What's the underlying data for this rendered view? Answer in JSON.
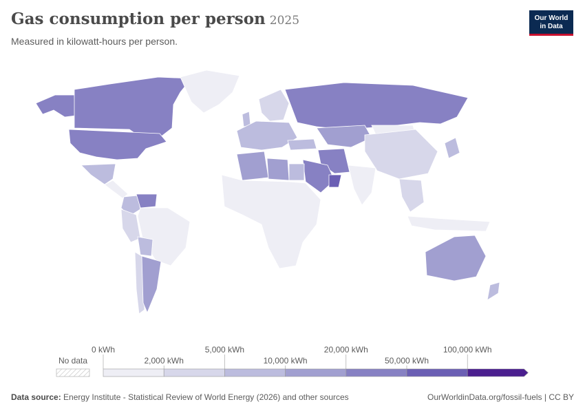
{
  "header": {
    "title": "Gas consumption per person",
    "year": "2025",
    "subtitle": "Measured in kilowatt-hours per person."
  },
  "logo": {
    "line1": "Our World",
    "line2": "in Data"
  },
  "legend": {
    "no_data_label": "No data",
    "top_labels": [
      "0 kWh",
      "5,000 kWh",
      "20,000 kWh",
      "100,000 kWh"
    ],
    "bottom_labels": [
      "2,000 kWh",
      "10,000 kWh",
      "50,000 kWh"
    ],
    "colors": [
      "#eeeef5",
      "#d7d7ea",
      "#bcbcde",
      "#a19fd0",
      "#8781c3",
      "#6b5fb4",
      "#4b1f8f"
    ]
  },
  "footer": {
    "source_label": "Data source:",
    "source_text": "Energy Institute - Statistical Review of World Energy (2026) and other sources",
    "url": "OurWorldinData.org/fossil-fuels | CC BY"
  },
  "map_regions": [
    {
      "name": "canada",
      "color": "#8781c3"
    },
    {
      "name": "usa",
      "color": "#8781c3"
    },
    {
      "name": "alaska",
      "color": "#8781c3"
    },
    {
      "name": "greenland",
      "color": "#eeeef5"
    },
    {
      "name": "mexico",
      "color": "#bcbcde"
    },
    {
      "name": "central-america",
      "color": "#eeeef5"
    },
    {
      "name": "venezuela",
      "color": "#8781c3"
    },
    {
      "name": "colombia",
      "color": "#bcbcde"
    },
    {
      "name": "brazil",
      "color": "#eeeef5"
    },
    {
      "name": "peru",
      "color": "#d7d7ea"
    },
    {
      "name": "bolivia",
      "color": "#bcbcde"
    },
    {
      "name": "argentina",
      "color": "#a19fd0"
    },
    {
      "name": "chile",
      "color": "#d7d7ea"
    },
    {
      "name": "europe-west",
      "color": "#bcbcde"
    },
    {
      "name": "scandinavia",
      "color": "#d7d7ea"
    },
    {
      "name": "uk",
      "color": "#bcbcde"
    },
    {
      "name": "russia",
      "color": "#8781c3"
    },
    {
      "name": "kazakhstan",
      "color": "#a19fd0"
    },
    {
      "name": "turkey",
      "color": "#bcbcde"
    },
    {
      "name": "iran",
      "color": "#8781c3"
    },
    {
      "name": "saudi-arabia",
      "color": "#8781c3"
    },
    {
      "name": "oman",
      "color": "#6b5fb4"
    },
    {
      "name": "algeria",
      "color": "#a19fd0"
    },
    {
      "name": "libya",
      "color": "#a19fd0"
    },
    {
      "name": "egypt",
      "color": "#bcbcde"
    },
    {
      "name": "africa",
      "color": "#eeeef5"
    },
    {
      "name": "india",
      "color": "#eeeef5"
    },
    {
      "name": "china",
      "color": "#d7d7ea"
    },
    {
      "name": "mongolia",
      "color": "#eeeef5"
    },
    {
      "name": "japan",
      "color": "#bcbcde"
    },
    {
      "name": "southeast-asia",
      "color": "#d7d7ea"
    },
    {
      "name": "indonesia",
      "color": "#eeeef5"
    },
    {
      "name": "australia",
      "color": "#a19fd0"
    },
    {
      "name": "new-zealand",
      "color": "#bcbcde"
    }
  ]
}
